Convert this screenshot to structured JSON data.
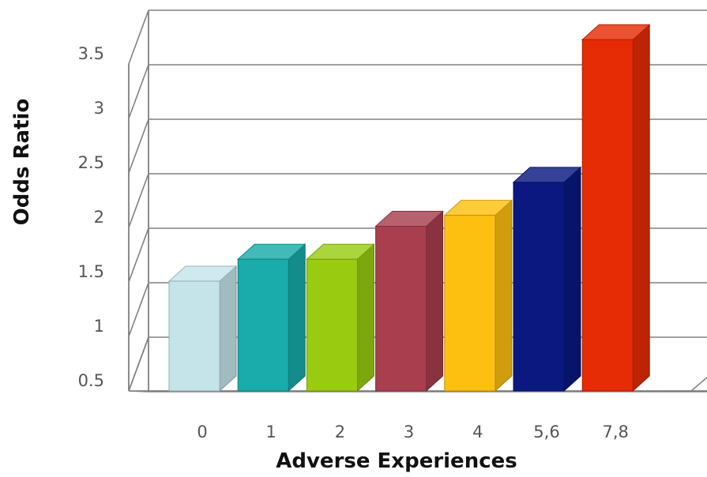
{
  "chart_data": {
    "type": "bar",
    "title": "",
    "xlabel": "Adverse Experiences",
    "ylabel": "Odds Ratio",
    "categories": [
      "0",
      "1",
      "2",
      "3",
      "4",
      "5,6",
      "7,8"
    ],
    "values": [
      1.0,
      1.2,
      1.2,
      1.5,
      1.6,
      1.9,
      3.2
    ],
    "colors": [
      "#c4e4ea",
      "#1aabab",
      "#99cc11",
      "#a83e4e",
      "#fec010",
      "#0a1880",
      "#e52c05"
    ],
    "y_ticks": [
      "0.5",
      "1",
      "1.5",
      "2",
      "2.5",
      "3",
      "3.5"
    ],
    "ylim": [
      0,
      3.5
    ],
    "grid": true,
    "legend": "none",
    "style": "3d"
  }
}
